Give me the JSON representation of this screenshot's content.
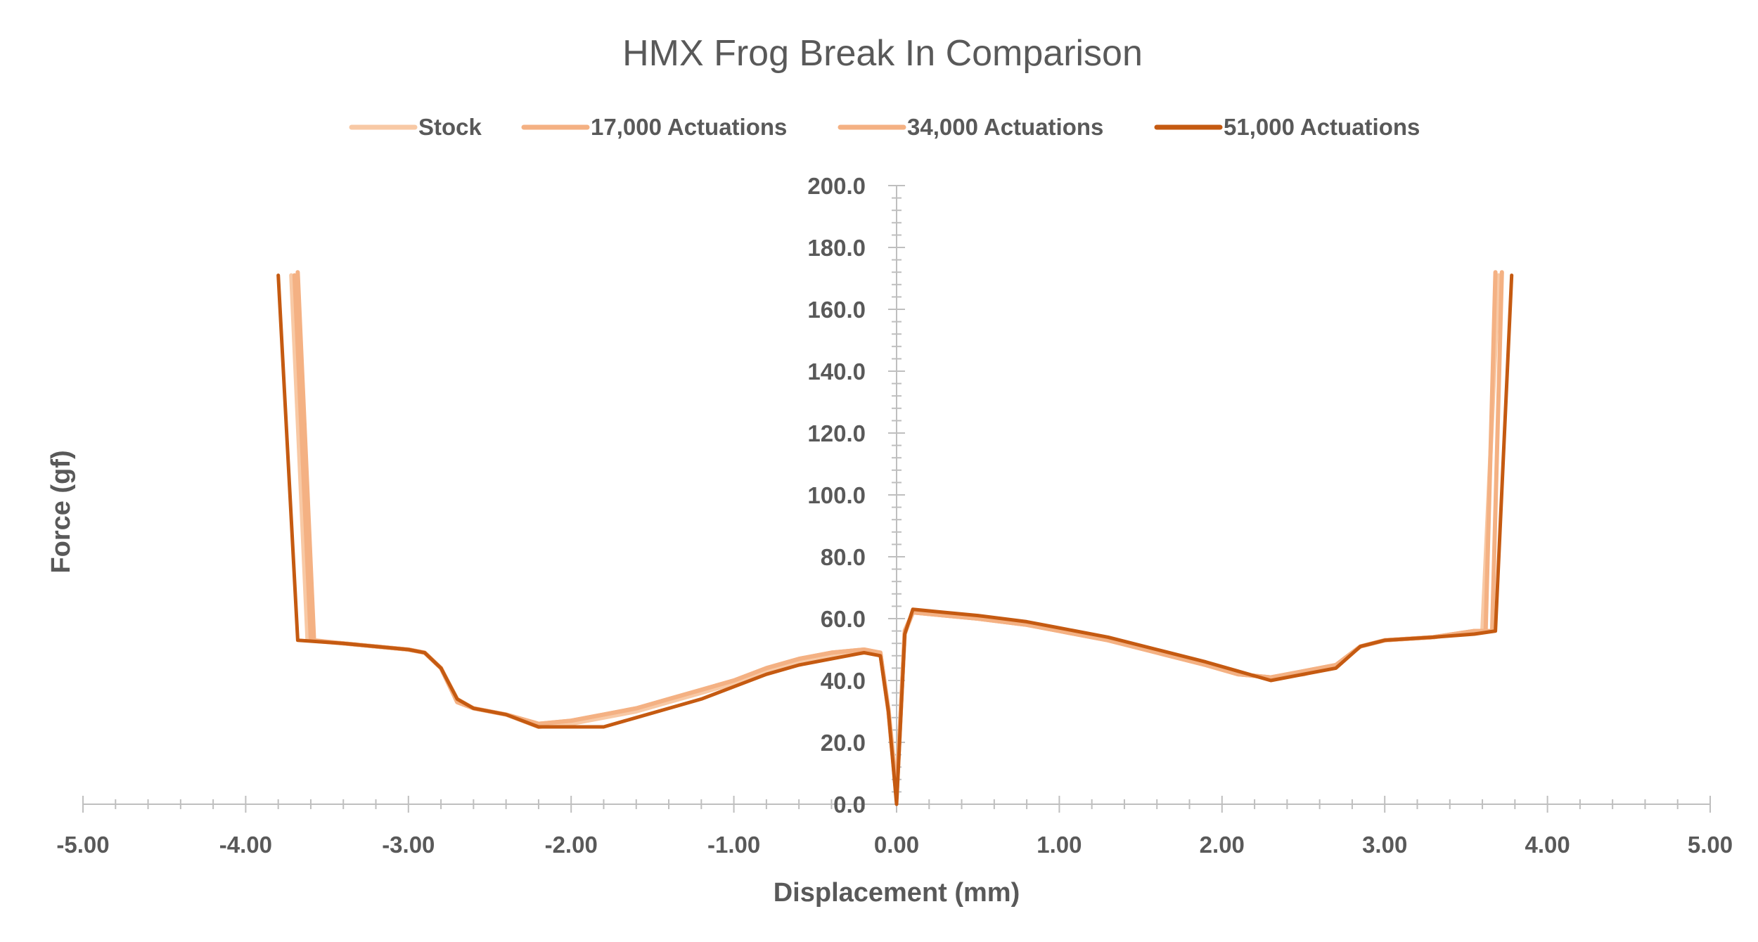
{
  "chart_data": {
    "type": "line",
    "title": "HMX Frog Break In Comparison",
    "xlabel": "Displacement (mm)",
    "ylabel": "Force (gf)",
    "xlim": [
      -5,
      5
    ],
    "ylim": [
      0,
      200
    ],
    "x_ticks": [
      -5,
      -4,
      -3,
      -2,
      -1,
      0,
      1,
      2,
      3,
      4,
      5
    ],
    "x_tick_labels": [
      "-5.00",
      "-4.00",
      "-3.00",
      "-2.00",
      "-1.00",
      "0.00",
      "1.00",
      "2.00",
      "3.00",
      "4.00",
      "5.00"
    ],
    "y_ticks": [
      0,
      20,
      40,
      60,
      80,
      100,
      120,
      140,
      160,
      180,
      200
    ],
    "y_tick_labels": [
      "0.0",
      "20.0",
      "40.0",
      "60.0",
      "80.0",
      "100.0",
      "120.0",
      "140.0",
      "160.0",
      "180.0",
      "200.0"
    ],
    "grid": false,
    "legend_position": "top",
    "series": [
      {
        "name": "Stock",
        "color": "#f8c9a5",
        "points": [
          [
            -3.72,
            171
          ],
          [
            -3.62,
            53
          ],
          [
            -3.4,
            52
          ],
          [
            -3.2,
            51
          ],
          [
            -3.0,
            50
          ],
          [
            -2.9,
            49
          ],
          [
            -2.8,
            44
          ],
          [
            -2.7,
            34
          ],
          [
            -2.6,
            31
          ],
          [
            -2.4,
            29
          ],
          [
            -2.2,
            25
          ],
          [
            -2.0,
            26
          ],
          [
            -1.8,
            28
          ],
          [
            -1.6,
            30
          ],
          [
            -1.4,
            33
          ],
          [
            -1.2,
            36
          ],
          [
            -1.0,
            39
          ],
          [
            -0.8,
            43
          ],
          [
            -0.6,
            46
          ],
          [
            -0.4,
            48
          ],
          [
            -0.2,
            49
          ],
          [
            -0.1,
            49
          ],
          [
            -0.05,
            31
          ],
          [
            0.0,
            5
          ],
          [
            0.05,
            55
          ],
          [
            0.1,
            62
          ],
          [
            0.3,
            61
          ],
          [
            0.5,
            60
          ],
          [
            0.8,
            58
          ],
          [
            1.0,
            56
          ],
          [
            1.3,
            53
          ],
          [
            1.6,
            49
          ],
          [
            1.9,
            45
          ],
          [
            2.1,
            42
          ],
          [
            2.3,
            41
          ],
          [
            2.5,
            42
          ],
          [
            2.7,
            45
          ],
          [
            2.85,
            51
          ],
          [
            3.0,
            53
          ],
          [
            3.3,
            54
          ],
          [
            3.55,
            56
          ],
          [
            3.6,
            56
          ],
          [
            3.7,
            171
          ]
        ]
      },
      {
        "name": "17,000 Actuations",
        "color": "#f4b183",
        "points": [
          [
            -3.68,
            172
          ],
          [
            -3.58,
            53
          ],
          [
            -3.4,
            52
          ],
          [
            -3.2,
            51
          ],
          [
            -3.0,
            50
          ],
          [
            -2.9,
            49
          ],
          [
            -2.8,
            44
          ],
          [
            -2.7,
            33
          ],
          [
            -2.6,
            31
          ],
          [
            -2.4,
            29
          ],
          [
            -2.2,
            26
          ],
          [
            -2.0,
            27
          ],
          [
            -1.8,
            29
          ],
          [
            -1.6,
            31
          ],
          [
            -1.4,
            34
          ],
          [
            -1.2,
            37
          ],
          [
            -1.0,
            40
          ],
          [
            -0.8,
            44
          ],
          [
            -0.6,
            47
          ],
          [
            -0.4,
            49
          ],
          [
            -0.2,
            50
          ],
          [
            -0.1,
            49
          ],
          [
            -0.05,
            30
          ],
          [
            0.0,
            3
          ],
          [
            0.05,
            56
          ],
          [
            0.1,
            62
          ],
          [
            0.3,
            61
          ],
          [
            0.5,
            60
          ],
          [
            0.8,
            58
          ],
          [
            1.0,
            56
          ],
          [
            1.3,
            53
          ],
          [
            1.6,
            49
          ],
          [
            1.9,
            45
          ],
          [
            2.1,
            42
          ],
          [
            2.3,
            41
          ],
          [
            2.5,
            43
          ],
          [
            2.7,
            45
          ],
          [
            2.85,
            51
          ],
          [
            3.0,
            53
          ],
          [
            3.3,
            54
          ],
          [
            3.55,
            56
          ],
          [
            3.62,
            56
          ],
          [
            3.68,
            172
          ]
        ]
      },
      {
        "name": "34,000 Actuations",
        "color": "#f4b183",
        "points": [
          [
            -3.7,
            171
          ],
          [
            -3.6,
            53
          ],
          [
            -3.4,
            52
          ],
          [
            -3.2,
            51
          ],
          [
            -3.0,
            50
          ],
          [
            -2.9,
            49
          ],
          [
            -2.8,
            44
          ],
          [
            -2.7,
            33
          ],
          [
            -2.6,
            31
          ],
          [
            -2.4,
            29
          ],
          [
            -2.2,
            26
          ],
          [
            -2.0,
            27
          ],
          [
            -1.8,
            29
          ],
          [
            -1.6,
            31
          ],
          [
            -1.4,
            34
          ],
          [
            -1.2,
            37
          ],
          [
            -1.0,
            40
          ],
          [
            -0.8,
            44
          ],
          [
            -0.6,
            47
          ],
          [
            -0.4,
            49
          ],
          [
            -0.2,
            50
          ],
          [
            -0.1,
            49
          ],
          [
            -0.05,
            30
          ],
          [
            0.0,
            2
          ],
          [
            0.05,
            56
          ],
          [
            0.1,
            62
          ],
          [
            0.3,
            61
          ],
          [
            0.5,
            60
          ],
          [
            0.8,
            58
          ],
          [
            1.0,
            56
          ],
          [
            1.3,
            53
          ],
          [
            1.6,
            49
          ],
          [
            1.9,
            45
          ],
          [
            2.1,
            42
          ],
          [
            2.3,
            41
          ],
          [
            2.5,
            43
          ],
          [
            2.7,
            45
          ],
          [
            2.85,
            51
          ],
          [
            3.0,
            53
          ],
          [
            3.3,
            54
          ],
          [
            3.55,
            56
          ],
          [
            3.66,
            56
          ],
          [
            3.72,
            172
          ]
        ]
      },
      {
        "name": "51,000 Actuations",
        "color": "#c55a11",
        "points": [
          [
            -3.8,
            171
          ],
          [
            -3.68,
            53
          ],
          [
            -3.4,
            52
          ],
          [
            -3.2,
            51
          ],
          [
            -3.0,
            50
          ],
          [
            -2.9,
            49
          ],
          [
            -2.8,
            44
          ],
          [
            -2.7,
            34
          ],
          [
            -2.6,
            31
          ],
          [
            -2.4,
            29
          ],
          [
            -2.2,
            25
          ],
          [
            -2.0,
            25
          ],
          [
            -1.8,
            25
          ],
          [
            -1.6,
            28
          ],
          [
            -1.4,
            31
          ],
          [
            -1.2,
            34
          ],
          [
            -1.0,
            38
          ],
          [
            -0.8,
            42
          ],
          [
            -0.6,
            45
          ],
          [
            -0.4,
            47
          ],
          [
            -0.2,
            49
          ],
          [
            -0.1,
            48
          ],
          [
            -0.05,
            30
          ],
          [
            0.0,
            0
          ],
          [
            0.05,
            55
          ],
          [
            0.1,
            63
          ],
          [
            0.3,
            62
          ],
          [
            0.5,
            61
          ],
          [
            0.8,
            59
          ],
          [
            1.0,
            57
          ],
          [
            1.3,
            54
          ],
          [
            1.6,
            50
          ],
          [
            1.9,
            46
          ],
          [
            2.1,
            43
          ],
          [
            2.3,
            40
          ],
          [
            2.5,
            42
          ],
          [
            2.7,
            44
          ],
          [
            2.85,
            51
          ],
          [
            3.0,
            53
          ],
          [
            3.3,
            54
          ],
          [
            3.55,
            55
          ],
          [
            3.68,
            56
          ],
          [
            3.78,
            171
          ]
        ]
      }
    ]
  }
}
